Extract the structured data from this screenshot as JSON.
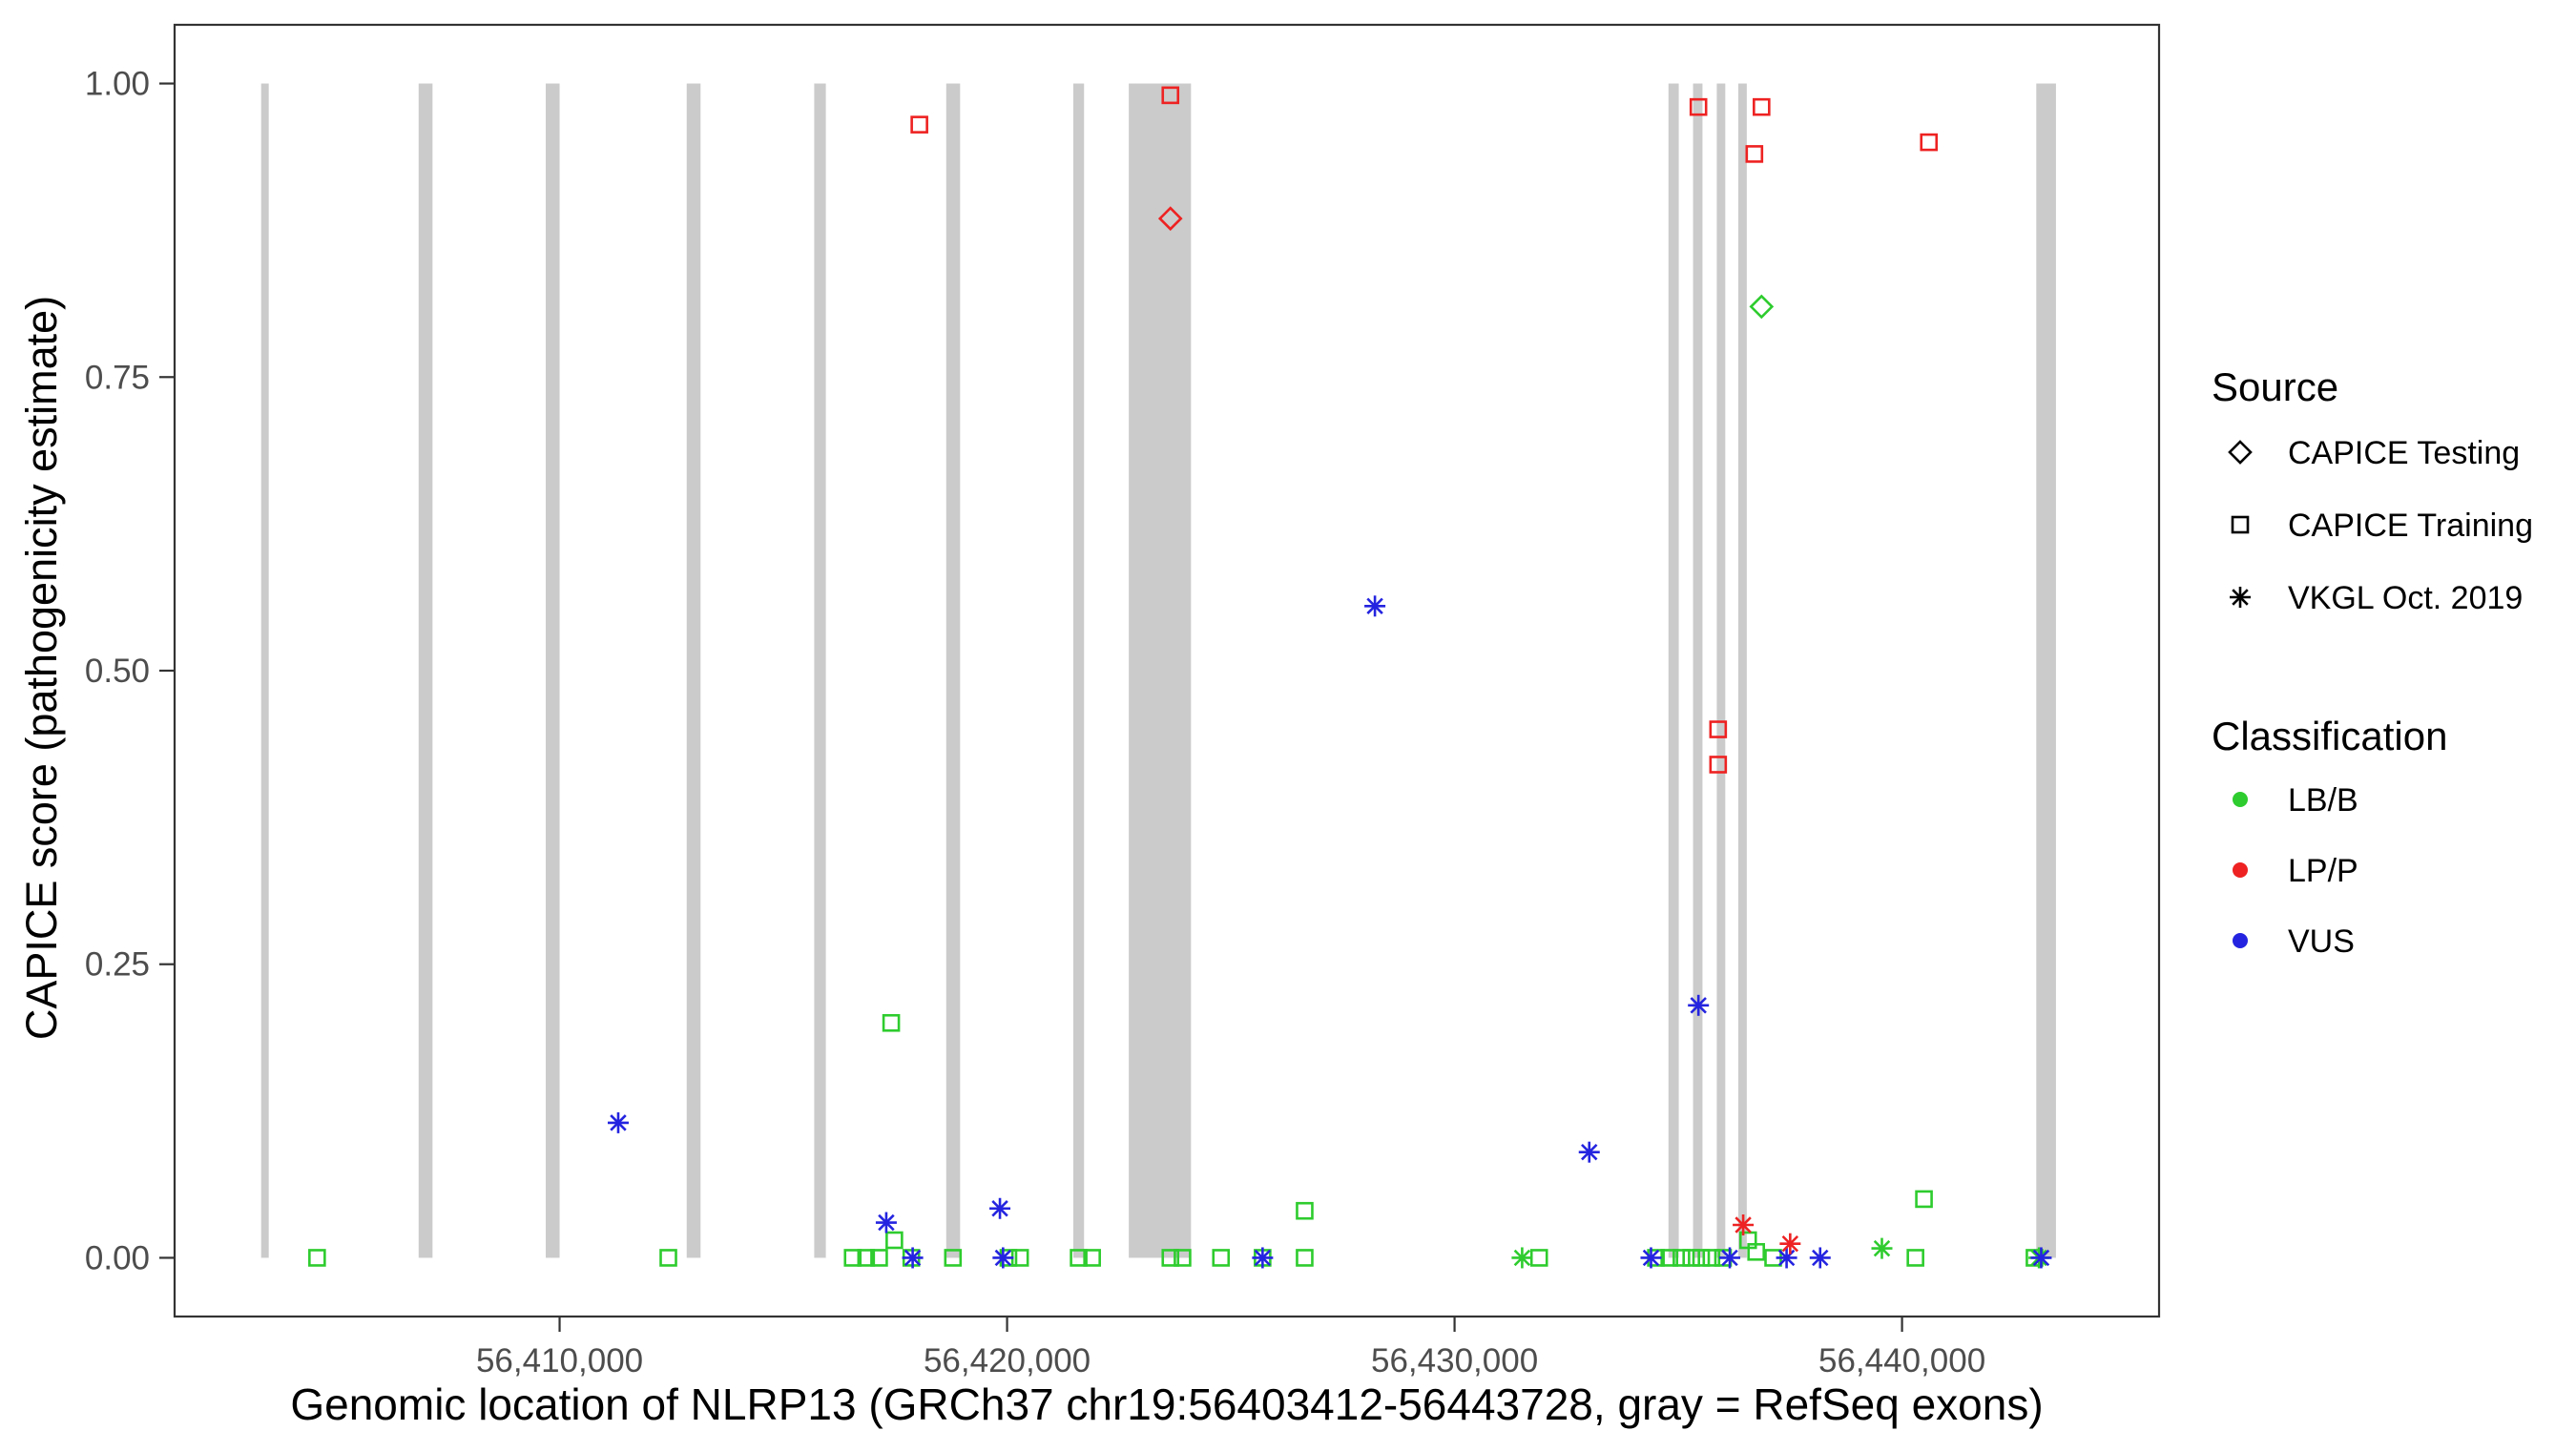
{
  "chart_data": {
    "type": "scatter",
    "title": "",
    "xlabel": "Genomic location of NLRP13 (GRCh37 chr19:56403412-56443728, gray = RefSeq exons)",
    "ylabel": "CAPICE score (pathogenicity estimate)",
    "xlim": [
      56401396,
      56445744
    ],
    "ylim": [
      -0.05,
      1.05
    ],
    "gene_region": [
      56403412,
      56443728
    ],
    "x_ticks": [
      56410000,
      56420000,
      56430000,
      56440000
    ],
    "x_tick_labels": [
      "56,410,000",
      "56,420,000",
      "56,430,000",
      "56,440,000"
    ],
    "y_ticks": [
      0,
      0.25,
      0.5,
      0.75,
      1
    ],
    "y_tick_labels": [
      "0.00",
      "0.25",
      "0.50",
      "0.75",
      "1.00"
    ],
    "grid": false,
    "exon_color": "#cbcbcb",
    "colors": {
      "LB/B": "#2ecc2e",
      "LP/P": "#ee2222",
      "VUS": "#2424e0"
    },
    "exons": [
      [
        56403330,
        56403500
      ],
      [
        56406850,
        56407160
      ],
      [
        56409690,
        56410000
      ],
      [
        56412840,
        56413150
      ],
      [
        56415690,
        56415950
      ],
      [
        56418640,
        56418950
      ],
      [
        56421480,
        56421720
      ],
      [
        56422720,
        56424110
      ],
      [
        56434780,
        56435010
      ],
      [
        56435330,
        56435540
      ],
      [
        56435860,
        56436050
      ],
      [
        56436340,
        56436530
      ],
      [
        56443000,
        56443440
      ]
    ],
    "legend": {
      "source": {
        "title": "Source",
        "items": [
          {
            "key": "testing",
            "label": "CAPICE Testing",
            "shape": "diamond"
          },
          {
            "key": "training",
            "label": "CAPICE Training",
            "shape": "square"
          },
          {
            "key": "vkgl",
            "label": "VKGL Oct. 2019",
            "shape": "asterisk"
          }
        ]
      },
      "classification": {
        "title": "Classification",
        "items": [
          {
            "label": "LB/B",
            "color": "#2ecc2e"
          },
          {
            "label": "LP/P",
            "color": "#ee2222"
          },
          {
            "label": "VUS",
            "color": "#2424e0"
          }
        ]
      }
    },
    "points": [
      {
        "x": 56418040,
        "y": 0.965,
        "src": "training",
        "cls": "LP/P"
      },
      {
        "x": 56423650,
        "y": 0.99,
        "src": "training",
        "cls": "LP/P"
      },
      {
        "x": 56435450,
        "y": 0.98,
        "src": "training",
        "cls": "LP/P"
      },
      {
        "x": 56436860,
        "y": 0.98,
        "src": "training",
        "cls": "LP/P"
      },
      {
        "x": 56436700,
        "y": 0.94,
        "src": "training",
        "cls": "LP/P"
      },
      {
        "x": 56440600,
        "y": 0.95,
        "src": "training",
        "cls": "LP/P"
      },
      {
        "x": 56435890,
        "y": 0.45,
        "src": "training",
        "cls": "LP/P"
      },
      {
        "x": 56435890,
        "y": 0.42,
        "src": "training",
        "cls": "LP/P"
      },
      {
        "x": 56423650,
        "y": 0.885,
        "src": "testing",
        "cls": "LP/P"
      },
      {
        "x": 56436860,
        "y": 0.81,
        "src": "testing",
        "cls": "LB/B"
      },
      {
        "x": 56428220,
        "y": 0.555,
        "src": "vkgl",
        "cls": "VUS"
      },
      {
        "x": 56411310,
        "y": 0.115,
        "src": "vkgl",
        "cls": "VUS"
      },
      {
        "x": 56435450,
        "y": 0.215,
        "src": "vkgl",
        "cls": "VUS"
      },
      {
        "x": 56433010,
        "y": 0.09,
        "src": "vkgl",
        "cls": "VUS"
      },
      {
        "x": 56419840,
        "y": 0.042,
        "src": "vkgl",
        "cls": "VUS"
      },
      {
        "x": 56417300,
        "y": 0.03,
        "src": "vkgl",
        "cls": "VUS"
      },
      {
        "x": 56417890,
        "y": 0.0,
        "src": "vkgl",
        "cls": "VUS"
      },
      {
        "x": 56419910,
        "y": 0.0,
        "src": "vkgl",
        "cls": "VUS"
      },
      {
        "x": 56425710,
        "y": 0.0,
        "src": "vkgl",
        "cls": "VUS"
      },
      {
        "x": 56434390,
        "y": 0.0,
        "src": "vkgl",
        "cls": "VUS"
      },
      {
        "x": 56436150,
        "y": 0.0,
        "src": "vkgl",
        "cls": "VUS"
      },
      {
        "x": 56437420,
        "y": 0.0,
        "src": "vkgl",
        "cls": "VUS"
      },
      {
        "x": 56438170,
        "y": 0.0,
        "src": "vkgl",
        "cls": "VUS"
      },
      {
        "x": 56443110,
        "y": 0.0,
        "src": "vkgl",
        "cls": "VUS"
      },
      {
        "x": 56436450,
        "y": 0.028,
        "src": "vkgl",
        "cls": "LP/P"
      },
      {
        "x": 56437500,
        "y": 0.012,
        "src": "vkgl",
        "cls": "LP/P"
      },
      {
        "x": 56431510,
        "y": 0.0,
        "src": "vkgl",
        "cls": "LB/B"
      },
      {
        "x": 56439550,
        "y": 0.008,
        "src": "vkgl",
        "cls": "LB/B"
      },
      {
        "x": 56443060,
        "y": 0.0,
        "src": "vkgl",
        "cls": "LB/B"
      },
      {
        "x": 56404580,
        "y": 0.0,
        "src": "training",
        "cls": "LB/B"
      },
      {
        "x": 56412430,
        "y": 0.0,
        "src": "training",
        "cls": "LB/B"
      },
      {
        "x": 56416550,
        "y": 0.0,
        "src": "training",
        "cls": "LB/B"
      },
      {
        "x": 56416850,
        "y": 0.0,
        "src": "training",
        "cls": "LB/B"
      },
      {
        "x": 56417140,
        "y": 0.0,
        "src": "training",
        "cls": "LB/B"
      },
      {
        "x": 56417410,
        "y": 0.2,
        "src": "training",
        "cls": "LB/B"
      },
      {
        "x": 56417480,
        "y": 0.015,
        "src": "training",
        "cls": "LB/B"
      },
      {
        "x": 56417860,
        "y": 0.0,
        "src": "training",
        "cls": "LB/B"
      },
      {
        "x": 56418790,
        "y": 0.0,
        "src": "training",
        "cls": "LB/B"
      },
      {
        "x": 56420030,
        "y": 0.0,
        "src": "training",
        "cls": "LB/B"
      },
      {
        "x": 56420290,
        "y": 0.0,
        "src": "training",
        "cls": "LB/B"
      },
      {
        "x": 56421600,
        "y": 0.0,
        "src": "training",
        "cls": "LB/B"
      },
      {
        "x": 56421900,
        "y": 0.0,
        "src": "training",
        "cls": "LB/B"
      },
      {
        "x": 56423650,
        "y": 0.0,
        "src": "training",
        "cls": "LB/B"
      },
      {
        "x": 56423920,
        "y": 0.0,
        "src": "training",
        "cls": "LB/B"
      },
      {
        "x": 56424780,
        "y": 0.0,
        "src": "training",
        "cls": "LB/B"
      },
      {
        "x": 56425710,
        "y": 0.0,
        "src": "training",
        "cls": "LB/B"
      },
      {
        "x": 56426650,
        "y": 0.04,
        "src": "training",
        "cls": "LB/B"
      },
      {
        "x": 56426650,
        "y": 0.0,
        "src": "training",
        "cls": "LB/B"
      },
      {
        "x": 56431890,
        "y": 0.0,
        "src": "training",
        "cls": "LB/B"
      },
      {
        "x": 56434500,
        "y": 0.0,
        "src": "training",
        "cls": "LB/B"
      },
      {
        "x": 56434800,
        "y": 0.0,
        "src": "training",
        "cls": "LB/B"
      },
      {
        "x": 56435070,
        "y": 0.0,
        "src": "training",
        "cls": "LB/B"
      },
      {
        "x": 56435290,
        "y": 0.0,
        "src": "training",
        "cls": "LB/B"
      },
      {
        "x": 56435510,
        "y": 0.0,
        "src": "training",
        "cls": "LB/B"
      },
      {
        "x": 56435740,
        "y": 0.0,
        "src": "training",
        "cls": "LB/B"
      },
      {
        "x": 56436000,
        "y": 0.0,
        "src": "training",
        "cls": "LB/B"
      },
      {
        "x": 56436560,
        "y": 0.015,
        "src": "training",
        "cls": "LB/B"
      },
      {
        "x": 56436740,
        "y": 0.005,
        "src": "training",
        "cls": "LB/B"
      },
      {
        "x": 56437120,
        "y": 0.0,
        "src": "training",
        "cls": "LB/B"
      },
      {
        "x": 56440490,
        "y": 0.05,
        "src": "training",
        "cls": "LB/B"
      },
      {
        "x": 56440300,
        "y": 0.0,
        "src": "training",
        "cls": "LB/B"
      },
      {
        "x": 56442960,
        "y": 0.0,
        "src": "training",
        "cls": "LB/B"
      }
    ]
  }
}
